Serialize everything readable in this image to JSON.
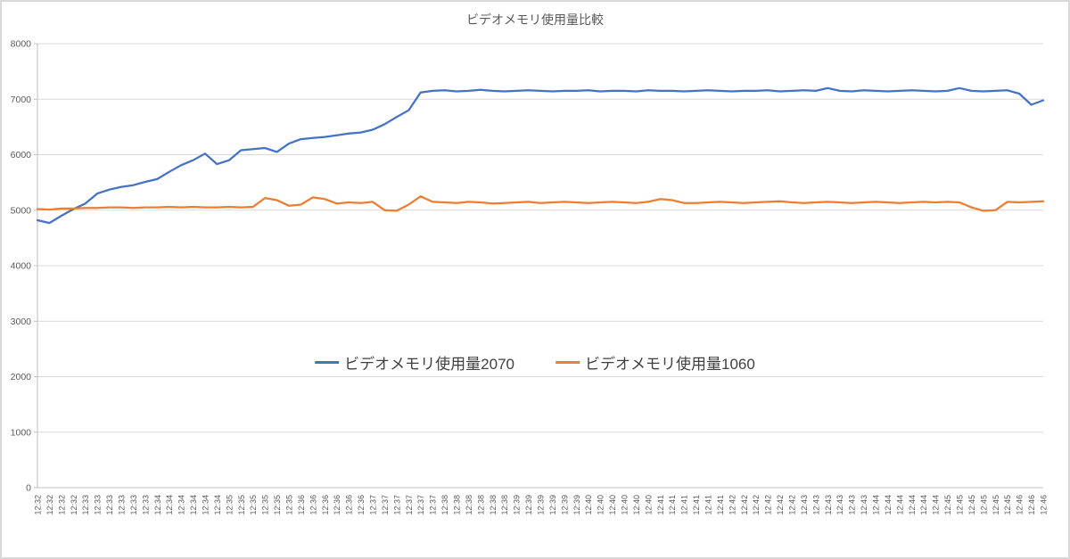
{
  "chart": {
    "title": "ビデオメモリ使用量比較",
    "colors": {
      "series2070": "#4472C4",
      "series1060": "#ED7D31",
      "grid": "#D9D9D9",
      "axis_line": "#BFBFBF",
      "axis_text": "#595959",
      "title_text": "#595959"
    }
  },
  "chart_data": {
    "type": "line",
    "title": "ビデオメモリ使用量比較",
    "xlabel": "",
    "ylabel": "",
    "ylim": [
      0,
      8000
    ],
    "ytick_step": 1000,
    "grid": true,
    "legend_position": "center-middle",
    "x": [
      "12:32",
      "12:32",
      "12:32",
      "12:32",
      "12:33",
      "12:33",
      "12:33",
      "12:33",
      "12:33",
      "12:33",
      "12:34",
      "12:34",
      "12:34",
      "12:34",
      "12:34",
      "12:34",
      "12:35",
      "12:35",
      "12:35",
      "12:35",
      "12:35",
      "12:35",
      "12:36",
      "12:36",
      "12:36",
      "12:36",
      "12:36",
      "12:36",
      "12:37",
      "12:37",
      "12:37",
      "12:37",
      "12:37",
      "12:37",
      "12:38",
      "12:38",
      "12:38",
      "12:38",
      "12:38",
      "12:38",
      "12:39",
      "12:39",
      "12:39",
      "12:39",
      "12:39",
      "12:39",
      "12:40",
      "12:40",
      "12:40",
      "12:40",
      "12:40",
      "12:40",
      "12:41",
      "12:41",
      "12:41",
      "12:41",
      "12:41",
      "12:41",
      "12:42",
      "12:42",
      "12:42",
      "12:42",
      "12:42",
      "12:42",
      "12:43",
      "12:43",
      "12:43",
      "12:43",
      "12:43",
      "12:43",
      "12:44",
      "12:44",
      "12:44",
      "12:44",
      "12:44",
      "12:44",
      "12:45",
      "12:45",
      "12:45",
      "12:45",
      "12:45",
      "12:45",
      "12:46",
      "12:46",
      "12:46"
    ],
    "series": [
      {
        "name": "ビデオメモリ使用量2070",
        "color": "#4472C4",
        "values": [
          4820,
          4770,
          4900,
          5020,
          5120,
          5300,
          5370,
          5420,
          5450,
          5510,
          5560,
          5690,
          5810,
          5900,
          6020,
          5830,
          5900,
          6080,
          6100,
          6120,
          6050,
          6200,
          6280,
          6300,
          6320,
          6350,
          6380,
          6400,
          6450,
          6550,
          6680,
          6800,
          7120,
          7150,
          7160,
          7140,
          7150,
          7170,
          7150,
          7140,
          7150,
          7160,
          7150,
          7140,
          7150,
          7150,
          7160,
          7140,
          7150,
          7150,
          7140,
          7160,
          7150,
          7150,
          7140,
          7150,
          7160,
          7150,
          7140,
          7150,
          7150,
          7160,
          7140,
          7150,
          7160,
          7150,
          7200,
          7150,
          7140,
          7160,
          7150,
          7140,
          7150,
          7160,
          7150,
          7140,
          7150,
          7200,
          7150,
          7140,
          7150,
          7160,
          7100,
          6900,
          6980
        ]
      },
      {
        "name": "ビデオメモリ使用量1060",
        "color": "#ED7D31",
        "values": [
          5020,
          5010,
          5030,
          5030,
          5040,
          5040,
          5050,
          5050,
          5040,
          5050,
          5050,
          5060,
          5050,
          5060,
          5050,
          5050,
          5060,
          5050,
          5060,
          5220,
          5180,
          5080,
          5100,
          5230,
          5200,
          5120,
          5140,
          5130,
          5150,
          5000,
          4990,
          5100,
          5250,
          5150,
          5140,
          5130,
          5150,
          5140,
          5120,
          5130,
          5140,
          5150,
          5130,
          5140,
          5150,
          5140,
          5130,
          5140,
          5150,
          5140,
          5130,
          5150,
          5200,
          5180,
          5130,
          5130,
          5140,
          5150,
          5140,
          5130,
          5140,
          5150,
          5160,
          5140,
          5130,
          5140,
          5150,
          5140,
          5130,
          5140,
          5150,
          5140,
          5130,
          5140,
          5150,
          5140,
          5150,
          5140,
          5050,
          4990,
          5000,
          5150,
          5140,
          5150,
          5160
        ]
      }
    ]
  }
}
